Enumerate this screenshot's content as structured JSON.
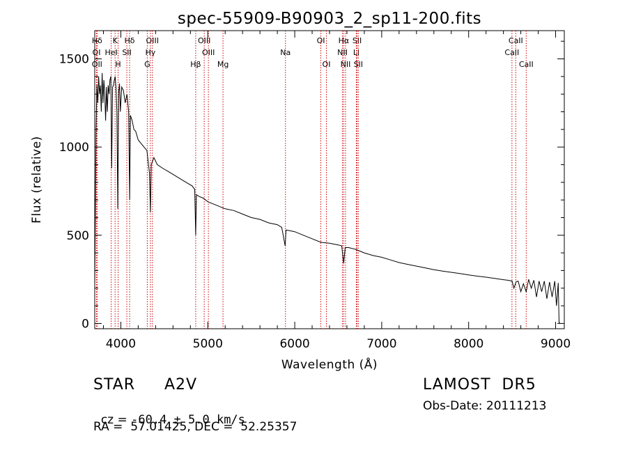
{
  "chart_data": {
    "type": "line",
    "title": "spec-55909-B90903_2_sp11-200.fits",
    "xlabel": "Wavelength (Å)",
    "ylabel": "Flux (relative)",
    "xlim": [
      3700,
      9100
    ],
    "ylim": [
      -30,
      1660
    ],
    "x_ticks": [
      4000,
      5000,
      6000,
      7000,
      8000,
      9000
    ],
    "y_ticks": [
      0,
      500,
      1000,
      1500
    ],
    "grid": false,
    "line_color": "#000000",
    "marker_color": "#cc0000",
    "series": [
      {
        "x": [
          3700,
          3715,
          3725,
          3735,
          3745,
          3755,
          3765,
          3775,
          3785,
          3795,
          3805,
          3815,
          3825,
          3835,
          3845,
          3855,
          3865,
          3875,
          3885,
          3895,
          3905,
          3915,
          3925,
          3935,
          3945,
          3955,
          3965,
          3975,
          3985,
          3995,
          4010,
          4030,
          4050,
          4070,
          4090,
          4101,
          4110,
          4130,
          4150,
          4170,
          4200,
          4250,
          4300,
          4330,
          4340,
          4350,
          4380,
          4420,
          4480,
          4550,
          4650,
          4750,
          4820,
          4850,
          4861,
          4870,
          4900,
          4950,
          5000,
          5100,
          5200,
          5300,
          5400,
          5500,
          5600,
          5700,
          5800,
          5850,
          5890,
          5900,
          5950,
          6000,
          6100,
          6200,
          6300,
          6400,
          6500,
          6540,
          6563,
          6580,
          6620,
          6700,
          6800,
          6900,
          7000,
          7100,
          7200,
          7300,
          7400,
          7500,
          7600,
          7700,
          7800,
          7900,
          8000,
          8100,
          8200,
          8300,
          8400,
          8450,
          8500,
          8520,
          8545,
          8570,
          8600,
          8630,
          8662,
          8690,
          8720,
          8750,
          8780,
          8810,
          8840,
          8870,
          8900,
          8930,
          8960,
          8990,
          9010,
          9030,
          9040,
          9050
        ],
        "y": [
          200,
          1100,
          1350,
          1250,
          1400,
          1300,
          1350,
          1200,
          1420,
          1250,
          1380,
          1300,
          1150,
          1340,
          1200,
          1350,
          1300,
          1380,
          1400,
          880,
          1340,
          1350,
          1380,
          1400,
          1330,
          1200,
          650,
          1310,
          1360,
          1200,
          1340,
          1320,
          1250,
          1300,
          1200,
          700,
          1180,
          1150,
          1100,
          1090,
          1040,
          1010,
          980,
          850,
          630,
          900,
          940,
          900,
          880,
          860,
          830,
          800,
          780,
          760,
          500,
          730,
          720,
          710,
          690,
          670,
          650,
          640,
          620,
          600,
          590,
          570,
          560,
          545,
          440,
          530,
          525,
          520,
          500,
          480,
          460,
          455,
          445,
          440,
          340,
          430,
          430,
          420,
          400,
          385,
          375,
          360,
          345,
          335,
          325,
          315,
          305,
          297,
          290,
          283,
          275,
          268,
          262,
          255,
          248,
          245,
          240,
          200,
          235,
          240,
          180,
          225,
          180,
          250,
          200,
          245,
          150,
          240,
          180,
          240,
          140,
          235,
          150,
          240,
          100,
          230,
          5,
          5
        ]
      }
    ],
    "line_markers": [
      {
        "label": "Hδ",
        "x": 3727,
        "row": 0
      },
      {
        "label": "OI",
        "x": 3720,
        "row": 1
      },
      {
        "label": "OII",
        "x": 3727,
        "row": 2
      },
      {
        "label": "K",
        "x": 3934,
        "row": 0
      },
      {
        "label": "HeI",
        "x": 3889,
        "row": 1
      },
      {
        "label": "H",
        "x": 3969,
        "row": 2
      },
      {
        "label": "Hδ",
        "x": 4101,
        "row": 0
      },
      {
        "label": "SII",
        "x": 4069,
        "row": 1
      },
      {
        "label": "OIII",
        "x": 4363,
        "row": 0
      },
      {
        "label": "Hγ",
        "x": 4340,
        "row": 1
      },
      {
        "label": "G",
        "x": 4304,
        "row": 2
      },
      {
        "label": "Hβ",
        "x": 4861,
        "row": 2
      },
      {
        "label": "OIII",
        "x": 4959,
        "row": 0
      },
      {
        "label": "OIII",
        "x": 5007,
        "row": 1
      },
      {
        "label": "Mg",
        "x": 5175,
        "row": 2
      },
      {
        "label": "Na",
        "x": 5893,
        "row": 1
      },
      {
        "label": "OI",
        "x": 6300,
        "row": 0
      },
      {
        "label": "OI",
        "x": 6364,
        "row": 2
      },
      {
        "label": "Hα",
        "x": 6563,
        "row": 0
      },
      {
        "label": "NII",
        "x": 6548,
        "row": 1
      },
      {
        "label": "NII",
        "x": 6584,
        "row": 2
      },
      {
        "label": "SII",
        "x": 6717,
        "row": 0
      },
      {
        "label": "Li",
        "x": 6708,
        "row": 1
      },
      {
        "label": "SII",
        "x": 6731,
        "row": 2
      },
      {
        "label": "CaII",
        "x": 8542,
        "row": 0
      },
      {
        "label": "CaII",
        "x": 8498,
        "row": 1
      },
      {
        "label": "CaII",
        "x": 8662,
        "row": 2
      }
    ]
  },
  "info": {
    "object_type": "STAR",
    "subclass": "A2V",
    "survey": "LAMOST  DR5",
    "cz_label": "cz = ",
    "cz_value": "-60.4 ± 5.0 km/s",
    "obs_date": "Obs-Date: 20111213",
    "radec": "RA =  57.01425, DEC =  52.25357"
  }
}
